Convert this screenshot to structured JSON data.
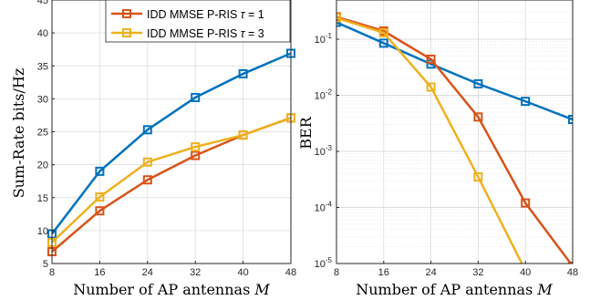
{
  "chart_data": [
    {
      "type": "line",
      "title": "",
      "xlabel": "Number of AP antennas M",
      "ylabel": "Sum-Rate bits/Hz",
      "x": [
        8,
        16,
        24,
        32,
        40,
        48
      ],
      "xlim": [
        8,
        48
      ],
      "ylim": [
        5,
        45
      ],
      "yscale": "linear",
      "xticks": [
        "8",
        "16",
        "24",
        "32",
        "40",
        "48"
      ],
      "yticks": [
        "5",
        "10",
        "15",
        "20",
        "25",
        "30",
        "35",
        "40",
        "45"
      ],
      "grid": true,
      "legend_position": "top",
      "series": [
        {
          "name": "",
          "color": "#0072BD",
          "values": [
            9.5,
            19.0,
            25.3,
            30.2,
            33.8,
            36.9
          ]
        },
        {
          "name": "IDD MMSE P-RIS τ = 1",
          "color": "#D95319",
          "values": [
            6.8,
            13.0,
            17.7,
            21.4,
            24.5,
            27.1
          ]
        },
        {
          "name": "IDD MMSE P-RIS τ = 3",
          "color": "#EDB120",
          "values": [
            8.2,
            15.1,
            20.4,
            22.7,
            24.5,
            27.1
          ]
        }
      ]
    },
    {
      "type": "line",
      "title": "",
      "xlabel": "Number of AP antennas M",
      "ylabel": "BER",
      "x": [
        8,
        16,
        24,
        32,
        40,
        48
      ],
      "xlim": [
        8,
        48
      ],
      "ylim": [
        1e-05,
        0.5
      ],
      "yscale": "log",
      "xticks": [
        "8",
        "16",
        "24",
        "32",
        "40",
        "48"
      ],
      "yticks": [
        "10-5",
        "10-4",
        "10-3",
        "10-2",
        "10-1"
      ],
      "grid": true,
      "series": [
        {
          "name": "",
          "color": "#0072BD",
          "values": [
            0.2,
            0.085,
            0.036,
            0.016,
            0.0078,
            0.0037
          ]
        },
        {
          "name": "",
          "color": "#D95319",
          "values": [
            0.25,
            0.14,
            0.044,
            0.0041,
            0.00012,
            9e-06
          ]
        },
        {
          "name": "",
          "color": "#EDB120",
          "values": [
            0.24,
            0.13,
            0.014,
            0.00035,
            7.5e-06,
            null
          ]
        }
      ]
    }
  ]
}
